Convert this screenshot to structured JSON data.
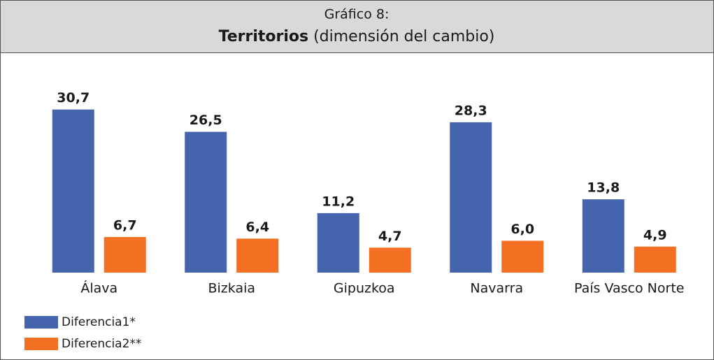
{
  "chart_data": {
    "type": "bar",
    "title": "Gráfico 8:",
    "subtitle_bold": "Territorios",
    "subtitle": "(dimensión del cambio)",
    "categories": [
      "Álava",
      "Bizkaia",
      "Gipuzkoa",
      "Navarra",
      "País Vasco Norte"
    ],
    "series": [
      {
        "name": "Diferencia1*",
        "color": "#4464ae",
        "values": [
          30.7,
          26.5,
          11.2,
          28.3,
          13.8
        ],
        "value_labels": [
          "30,7",
          "26,5",
          "11,2",
          "28,3",
          "13,8"
        ]
      },
      {
        "name": "Diferencia2**",
        "color": "#f36f21",
        "values": [
          6.7,
          6.4,
          4.7,
          6.0,
          4.9
        ],
        "value_labels": [
          "6,7",
          "6,4",
          "4,7",
          "6,0",
          "4,9"
        ]
      }
    ],
    "ylim": [
      0,
      35
    ]
  }
}
